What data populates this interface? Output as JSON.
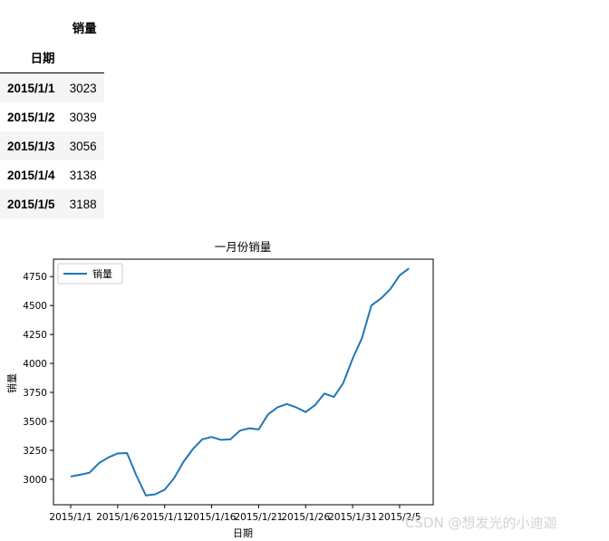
{
  "table": {
    "column_header": "销量",
    "index_name": "日期",
    "rows": [
      {
        "date": "2015/1/1",
        "value": "3023"
      },
      {
        "date": "2015/1/2",
        "value": "3039"
      },
      {
        "date": "2015/1/3",
        "value": "3056"
      },
      {
        "date": "2015/1/4",
        "value": "3138"
      },
      {
        "date": "2015/1/5",
        "value": "3188"
      }
    ]
  },
  "watermark": "CSDN @想发光的小迪迦",
  "chart_data": {
    "type": "line",
    "title": "一月份销量",
    "xlabel": "日期",
    "ylabel": "销量",
    "legend": {
      "placement": "top-left",
      "entries": [
        "销量"
      ]
    },
    "grid": false,
    "x": [
      "2015/1/1",
      "2015/1/2",
      "2015/1/3",
      "2015/1/4",
      "2015/1/5",
      "2015/1/6",
      "2015/1/7",
      "2015/1/8",
      "2015/1/9",
      "2015/1/10",
      "2015/1/11",
      "2015/1/12",
      "2015/1/13",
      "2015/1/14",
      "2015/1/15",
      "2015/1/16",
      "2015/1/17",
      "2015/1/18",
      "2015/1/19",
      "2015/1/20",
      "2015/1/21",
      "2015/1/22",
      "2015/1/23",
      "2015/1/24",
      "2015/1/25",
      "2015/1/26",
      "2015/1/27",
      "2015/1/28",
      "2015/1/29",
      "2015/1/30",
      "2015/1/31",
      "2015/2/1",
      "2015/2/2",
      "2015/2/3",
      "2015/2/4",
      "2015/2/5",
      "2015/2/6"
    ],
    "x_tick_labels": [
      "2015/1/1",
      "2015/1/6",
      "2015/1/11",
      "2015/1/16",
      "2015/1/21",
      "2015/1/26",
      "2015/1/31",
      "2015/2/5"
    ],
    "y_ticks": [
      3000,
      3250,
      3500,
      3750,
      4000,
      4250,
      4500,
      4750
    ],
    "ylim": [
      2780,
      4900
    ],
    "series": [
      {
        "name": "销量",
        "color": "#1f77b4",
        "values": [
          3023,
          3039,
          3056,
          3138,
          3188,
          3223,
          3226,
          3030,
          2860,
          2870,
          2910,
          3010,
          3150,
          3260,
          3345,
          3365,
          3340,
          3345,
          3420,
          3440,
          3430,
          3560,
          3620,
          3650,
          3620,
          3580,
          3640,
          3740,
          3710,
          3830,
          4040,
          4220,
          4500,
          4560,
          4640,
          4760,
          4820
        ]
      }
    ]
  }
}
